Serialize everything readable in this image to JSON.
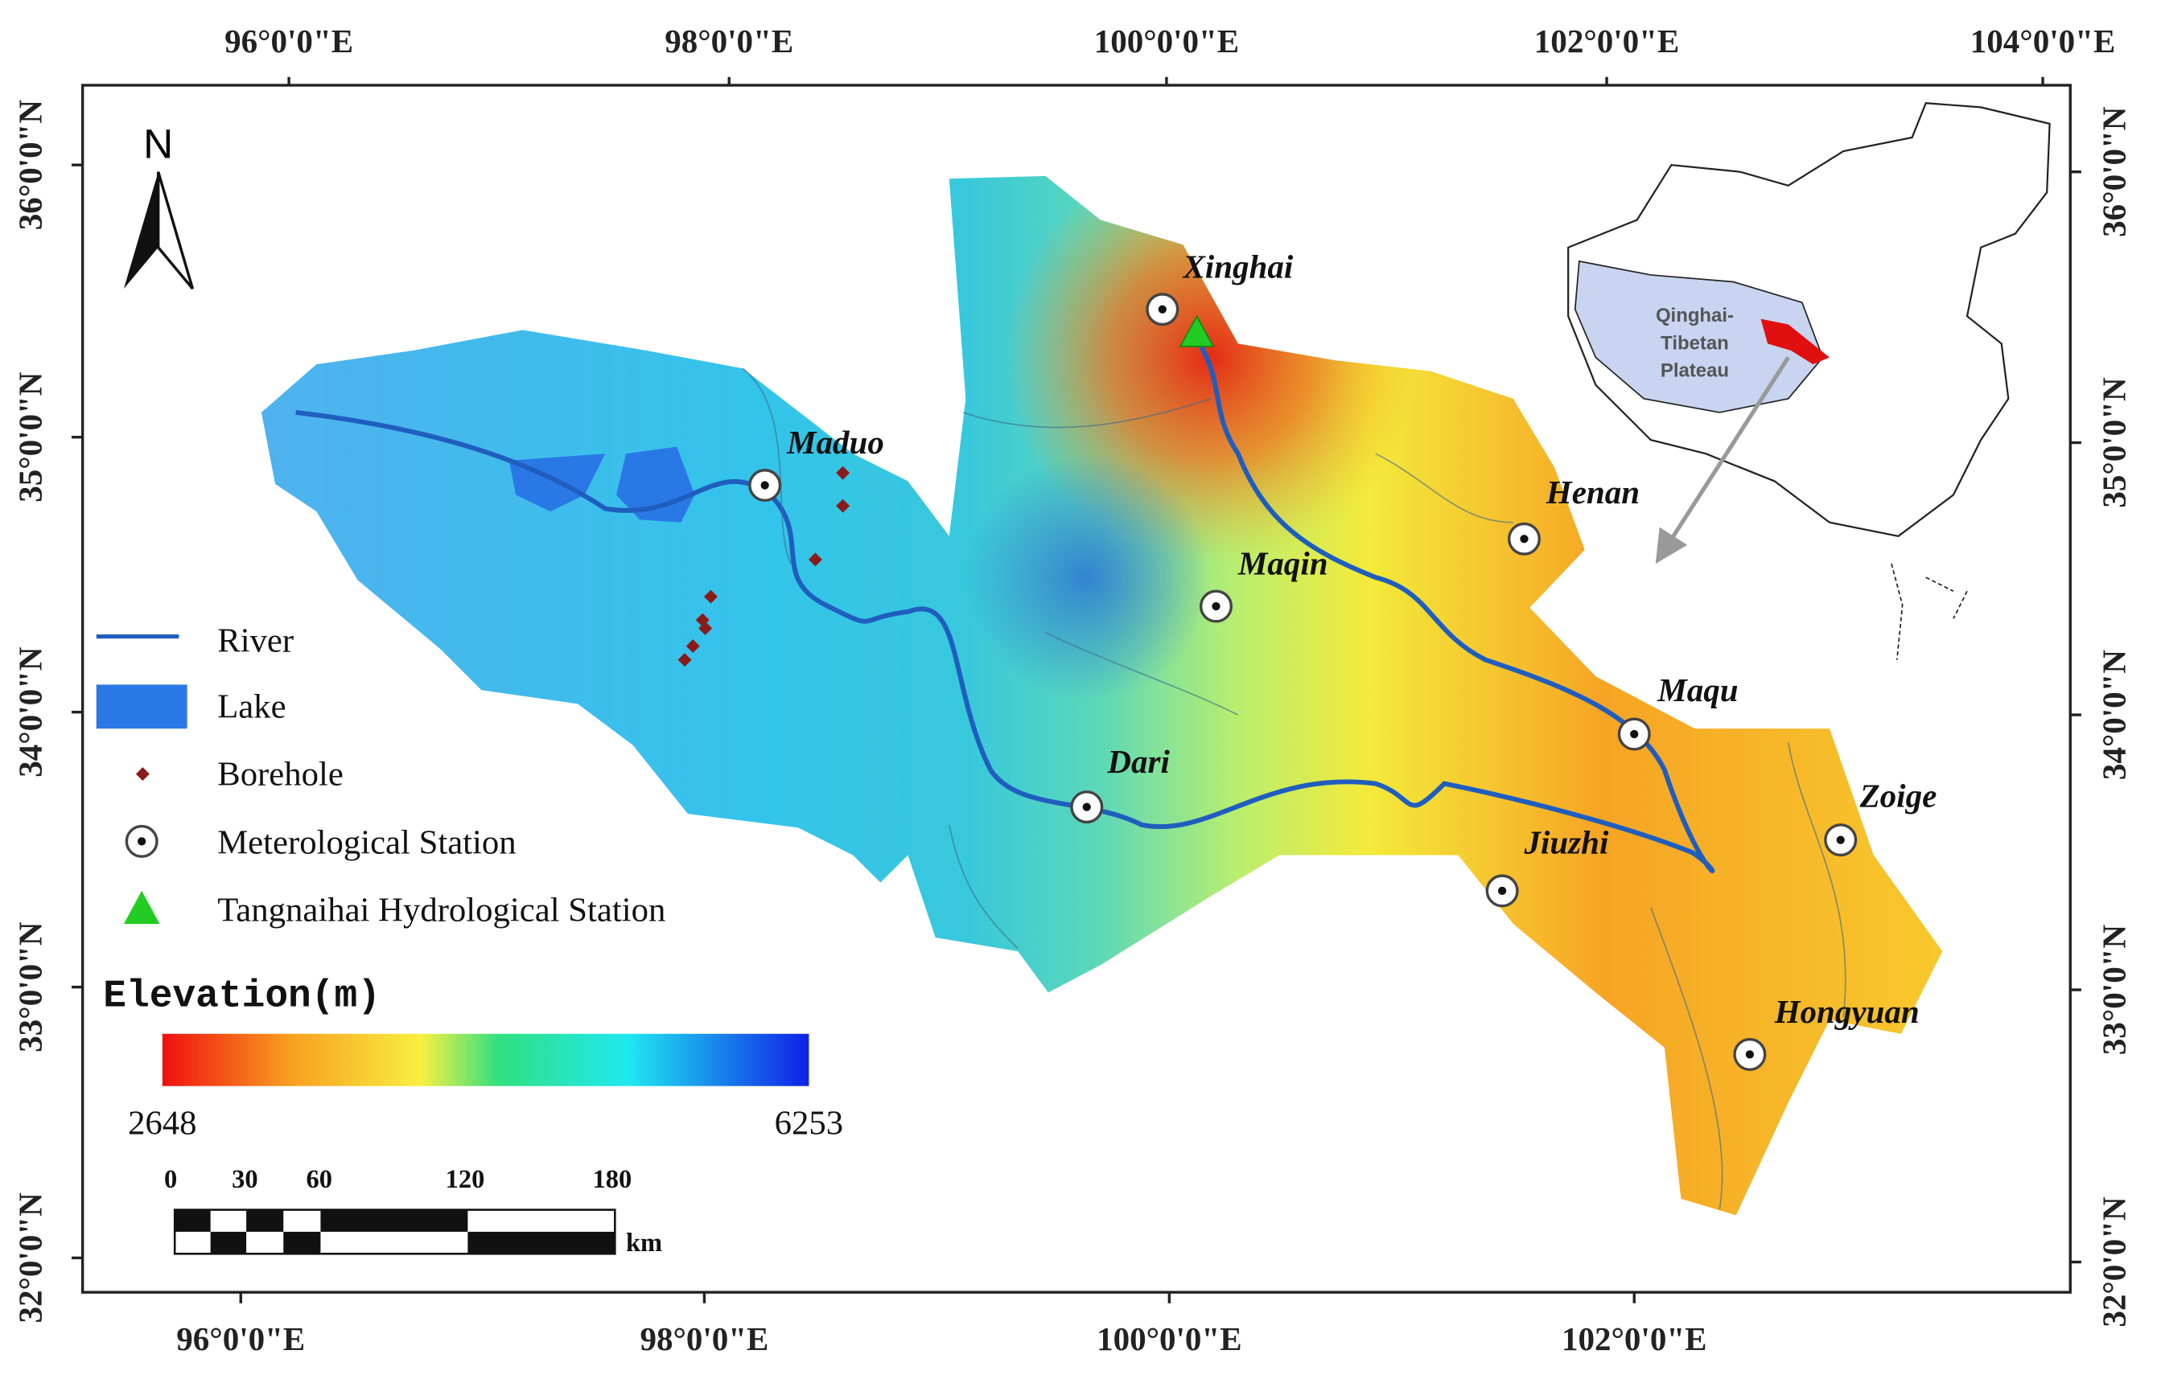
{
  "map": {
    "longitude_top": [
      "96°0'0\"E",
      "98°0'0\"E",
      "100°0'0\"E",
      "102°0'0\"E",
      "104°0'0\"E"
    ],
    "longitude_bottom": [
      "96°0'0\"E",
      "98°0'0\"E",
      "100°0'0\"E",
      "102°0'0\"E"
    ],
    "latitude_left": [
      "36°0'0\"N",
      "35°0'0\"N",
      "34°0'0\"N",
      "33°0'0\"N",
      "32°0'0\"N"
    ],
    "latitude_right": [
      "36°0'0\"N",
      "35°0'0\"N",
      "34°0'0\"N",
      "33°0'0\"N",
      "32°0'0\"N"
    ],
    "north": "N",
    "stations": [
      "Xinghai",
      "Maduo",
      "Henan",
      "Maqin",
      "Maqu",
      "Dari",
      "Zoige",
      "Jiuzhi",
      "Hongyuan"
    ],
    "legend": [
      "River",
      "Lake",
      "Borehole",
      "Meterological Station",
      "Tangnaihai Hydrological Station"
    ],
    "elevation": {
      "title": "Elevation(m)",
      "min": "2648",
      "max": "6253"
    },
    "scale": {
      "ticks": [
        "0",
        "30",
        "60",
        "120",
        "180"
      ],
      "unit": "km"
    },
    "inset": {
      "label": [
        "Qinghai-",
        "Tibetan",
        "Plateau"
      ]
    }
  }
}
